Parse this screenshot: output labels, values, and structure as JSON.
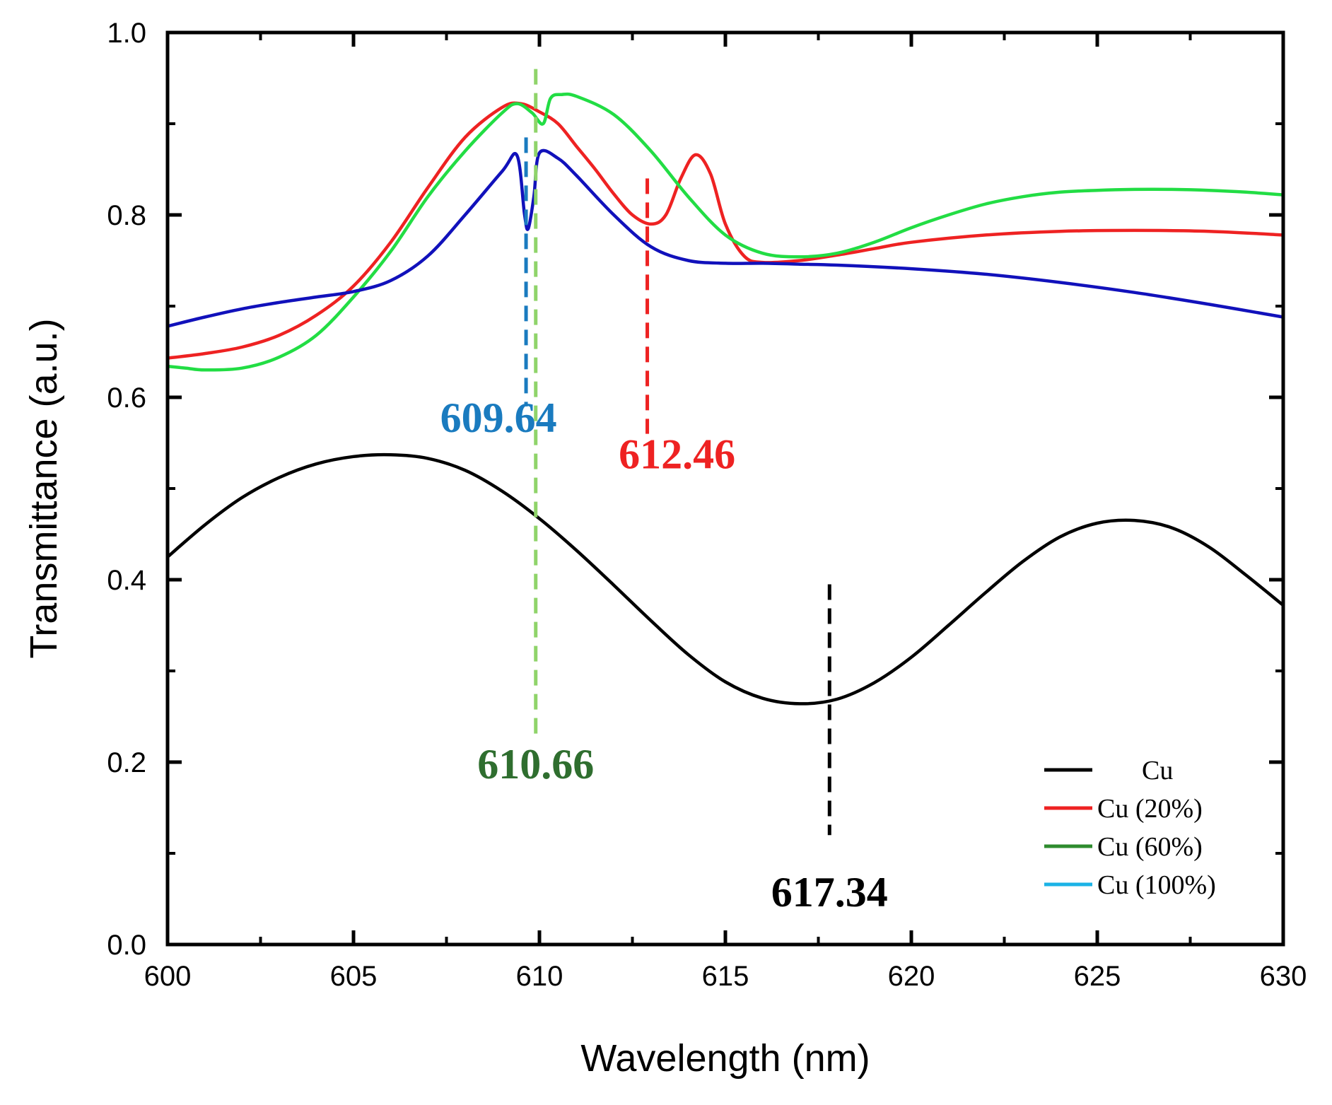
{
  "chart_data": {
    "type": "line",
    "xlabel": "Wavelength (nm)",
    "ylabel": "Transmittance (a.u.)",
    "xlim": [
      600,
      630
    ],
    "ylim": [
      0.0,
      1.0
    ],
    "x_ticks": [
      600,
      605,
      610,
      615,
      620,
      625,
      630
    ],
    "x_tick_labels": [
      "600",
      "605",
      "610",
      "615",
      "620",
      "625",
      "630"
    ],
    "y_ticks": [
      0.0,
      0.2,
      0.4,
      0.6,
      0.8,
      1.0
    ],
    "y_tick_labels": [
      "0.0",
      "0.2",
      "0.4",
      "0.6",
      "0.8",
      "1.0"
    ],
    "grid": false,
    "legend_position": "bottom-right",
    "series": [
      {
        "name": "Cu",
        "color": "#000000",
        "points": [
          [
            600,
            0.425
          ],
          [
            601,
            0.46
          ],
          [
            602,
            0.49
          ],
          [
            603,
            0.512
          ],
          [
            604,
            0.527
          ],
          [
            605,
            0.535
          ],
          [
            606,
            0.537
          ],
          [
            607,
            0.533
          ],
          [
            608,
            0.52
          ],
          [
            609,
            0.497
          ],
          [
            610,
            0.467
          ],
          [
            611,
            0.432
          ],
          [
            612,
            0.394
          ],
          [
            613,
            0.355
          ],
          [
            614,
            0.318
          ],
          [
            615,
            0.288
          ],
          [
            616,
            0.27
          ],
          [
            617,
            0.264
          ],
          [
            618,
            0.269
          ],
          [
            619,
            0.287
          ],
          [
            620,
            0.315
          ],
          [
            621,
            0.35
          ],
          [
            622,
            0.386
          ],
          [
            623,
            0.42
          ],
          [
            624,
            0.447
          ],
          [
            625,
            0.462
          ],
          [
            626,
            0.465
          ],
          [
            627,
            0.457
          ],
          [
            628,
            0.436
          ],
          [
            629,
            0.405
          ],
          [
            630,
            0.372
          ]
        ]
      },
      {
        "name": "Cu (20%)",
        "color": "#ee2222",
        "points": [
          [
            600,
            0.643
          ],
          [
            601,
            0.648
          ],
          [
            602,
            0.655
          ],
          [
            603,
            0.668
          ],
          [
            604,
            0.69
          ],
          [
            605,
            0.722
          ],
          [
            606,
            0.77
          ],
          [
            607,
            0.83
          ],
          [
            608,
            0.885
          ],
          [
            609,
            0.918
          ],
          [
            609.5,
            0.922
          ],
          [
            610,
            0.913
          ],
          [
            610.5,
            0.9
          ],
          [
            611,
            0.875
          ],
          [
            611.5,
            0.85
          ],
          [
            612,
            0.823
          ],
          [
            612.5,
            0.8
          ],
          [
            613,
            0.79
          ],
          [
            613.4,
            0.8
          ],
          [
            613.8,
            0.84
          ],
          [
            614.2,
            0.866
          ],
          [
            614.6,
            0.845
          ],
          [
            615,
            0.79
          ],
          [
            615.5,
            0.755
          ],
          [
            616,
            0.748
          ],
          [
            617,
            0.75
          ],
          [
            618,
            0.756
          ],
          [
            619,
            0.763
          ],
          [
            620,
            0.77
          ],
          [
            622,
            0.778
          ],
          [
            624,
            0.782
          ],
          [
            626,
            0.783
          ],
          [
            628,
            0.782
          ],
          [
            630,
            0.778
          ]
        ]
      },
      {
        "name": "Cu (60%)",
        "color": "#22dd44",
        "points": [
          [
            600,
            0.634
          ],
          [
            600.5,
            0.632
          ],
          [
            601,
            0.63
          ],
          [
            602,
            0.632
          ],
          [
            603,
            0.644
          ],
          [
            604,
            0.668
          ],
          [
            605,
            0.71
          ],
          [
            606,
            0.76
          ],
          [
            607,
            0.82
          ],
          [
            608,
            0.87
          ],
          [
            609,
            0.912
          ],
          [
            609.4,
            0.922
          ],
          [
            609.8,
            0.912
          ],
          [
            610.1,
            0.9
          ],
          [
            610.3,
            0.928
          ],
          [
            610.6,
            0.932
          ],
          [
            611,
            0.93
          ],
          [
            612,
            0.91
          ],
          [
            613,
            0.87
          ],
          [
            614,
            0.82
          ],
          [
            615,
            0.778
          ],
          [
            616,
            0.758
          ],
          [
            617,
            0.754
          ],
          [
            618,
            0.758
          ],
          [
            619,
            0.77
          ],
          [
            620,
            0.786
          ],
          [
            621,
            0.8
          ],
          [
            622,
            0.812
          ],
          [
            623,
            0.82
          ],
          [
            624,
            0.825
          ],
          [
            625,
            0.827
          ],
          [
            626,
            0.828
          ],
          [
            627,
            0.828
          ],
          [
            628,
            0.827
          ],
          [
            629,
            0.825
          ],
          [
            630,
            0.822
          ]
        ]
      },
      {
        "name": "Cu (100%)",
        "color": "#1111bb",
        "points": [
          [
            600,
            0.678
          ],
          [
            601,
            0.688
          ],
          [
            602,
            0.697
          ],
          [
            603,
            0.704
          ],
          [
            604,
            0.71
          ],
          [
            605,
            0.716
          ],
          [
            606,
            0.728
          ],
          [
            607,
            0.755
          ],
          [
            608,
            0.8
          ],
          [
            609,
            0.848
          ],
          [
            609.4,
            0.865
          ],
          [
            609.6,
            0.8
          ],
          [
            609.7,
            0.785
          ],
          [
            609.85,
            0.82
          ],
          [
            610,
            0.868
          ],
          [
            610.5,
            0.862
          ],
          [
            611,
            0.843
          ],
          [
            612,
            0.8
          ],
          [
            613,
            0.765
          ],
          [
            614,
            0.75
          ],
          [
            615,
            0.747
          ],
          [
            616,
            0.747
          ],
          [
            617,
            0.746
          ],
          [
            618,
            0.745
          ],
          [
            620,
            0.741
          ],
          [
            622,
            0.735
          ],
          [
            624,
            0.726
          ],
          [
            626,
            0.715
          ],
          [
            628,
            0.702
          ],
          [
            630,
            0.688
          ]
        ]
      }
    ],
    "annotations": [
      {
        "text": "609.64",
        "color": "#1a7bbf",
        "marker_x": 609.64,
        "marker_ymin": 0.59,
        "marker_ymax": 0.885,
        "label_x": 608.9,
        "label_y": 0.562
      },
      {
        "text": "612.46",
        "color": "#ee2222",
        "marker_x": 612.9,
        "marker_ymin": 0.56,
        "marker_ymax": 0.84,
        "label_x": 613.7,
        "label_y": 0.522
      },
      {
        "text": "610.66",
        "color": "#2f6e2f",
        "marker_x": 609.9,
        "marker_ymin": 0.225,
        "marker_ymax": 0.96,
        "label_x": 609.9,
        "label_y": 0.182
      },
      {
        "text": "617.34",
        "color": "#000000",
        "marker_x": 617.8,
        "marker_ymin": 0.12,
        "marker_ymax": 0.395,
        "label_x": 617.8,
        "label_y": 0.042
      }
    ],
    "annotation_marker_colors": [
      "#1a7bbf",
      "#ee2222",
      "#8fd46a",
      "#000000"
    ],
    "legend_swatch_colors": [
      "#000000",
      "#ee2222",
      "#2e8b2e",
      "#1bb3e6"
    ]
  }
}
